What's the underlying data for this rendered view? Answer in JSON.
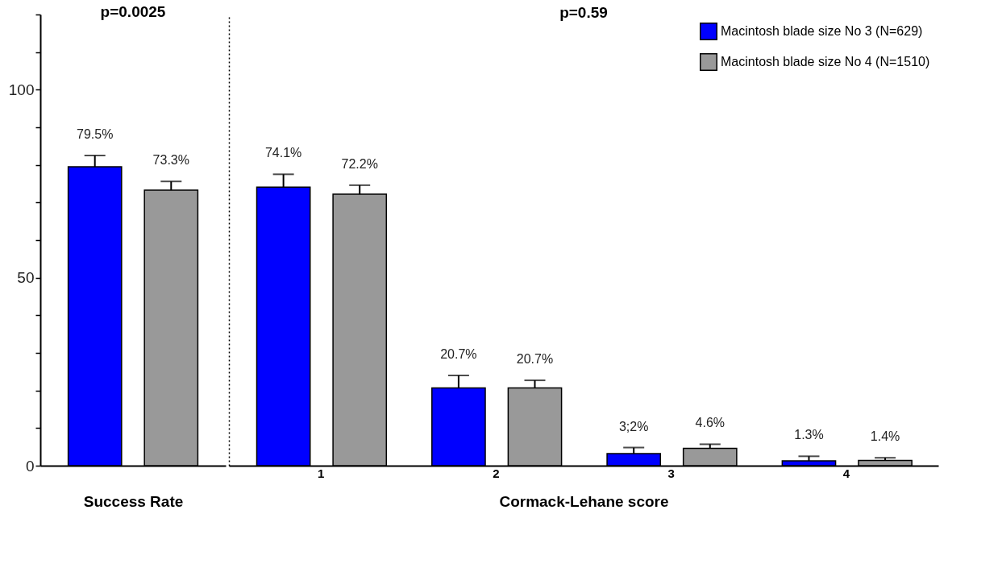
{
  "chart_data": [
    {
      "type": "bar",
      "title": "p=0.0025",
      "xlabel": "Success Rate",
      "categories": [
        null
      ],
      "series": [
        {
          "color": "#0000ff",
          "values": [
            79.5
          ],
          "errors": [
            [
              79.5,
              82.5
            ]
          ],
          "value_labels": [
            "79.5%"
          ]
        },
        {
          "color": "#999999",
          "values": [
            73.3
          ],
          "errors": [
            [
              73.3,
              75.6
            ]
          ],
          "value_labels": [
            "73.3%"
          ]
        }
      ],
      "ylim": [
        0,
        120
      ],
      "yticks": [
        0,
        {
          "value": 10,
          "label": null
        },
        {
          "value": 20,
          "label": null
        },
        {
          "value": 30,
          "label": null
        },
        {
          "value": 40,
          "label": null
        },
        50,
        {
          "value": 60,
          "label": null
        },
        {
          "value": 70,
          "label": null
        },
        {
          "value": 80,
          "label": null
        },
        {
          "value": 90,
          "label": null
        },
        100,
        {
          "value": 110,
          "label": null
        },
        {
          "value": 120,
          "label": null
        }
      ],
      "grid": false,
      "legend": false
    },
    {
      "type": "bar",
      "title": "p=0.59",
      "xlabel": "Cormack-Lehane score",
      "categories": [
        "1",
        "2",
        "3",
        "4"
      ],
      "series": [
        {
          "name": "Macintosh blade size No 3 (N=629)",
          "color": "#0000ff",
          "values": [
            74.1,
            20.7,
            3.2,
            1.3
          ],
          "errors": [
            [
              74.1,
              77.5
            ],
            [
              20.7,
              24.0
            ],
            [
              3.2,
              4.8
            ],
            [
              1.3,
              2.5
            ]
          ],
          "value_labels": [
            "74.1%",
            "20.7%",
            "3;2%",
            "1.3%"
          ]
        },
        {
          "name": "Macintosh blade size No 4 (N=1510)",
          "color": "#999999",
          "values": [
            72.2,
            20.7,
            4.6,
            1.4
          ],
          "errors": [
            [
              72.2,
              74.6
            ],
            [
              20.7,
              22.7
            ],
            [
              4.6,
              5.7
            ],
            [
              1.4,
              2.1
            ]
          ],
          "value_labels": [
            "72.2%",
            "20.7%",
            "4.6%",
            "1.4%"
          ]
        }
      ],
      "ylim": [
        0,
        120
      ],
      "tick_labels": "x",
      "grid": false,
      "legend": "top right"
    }
  ]
}
